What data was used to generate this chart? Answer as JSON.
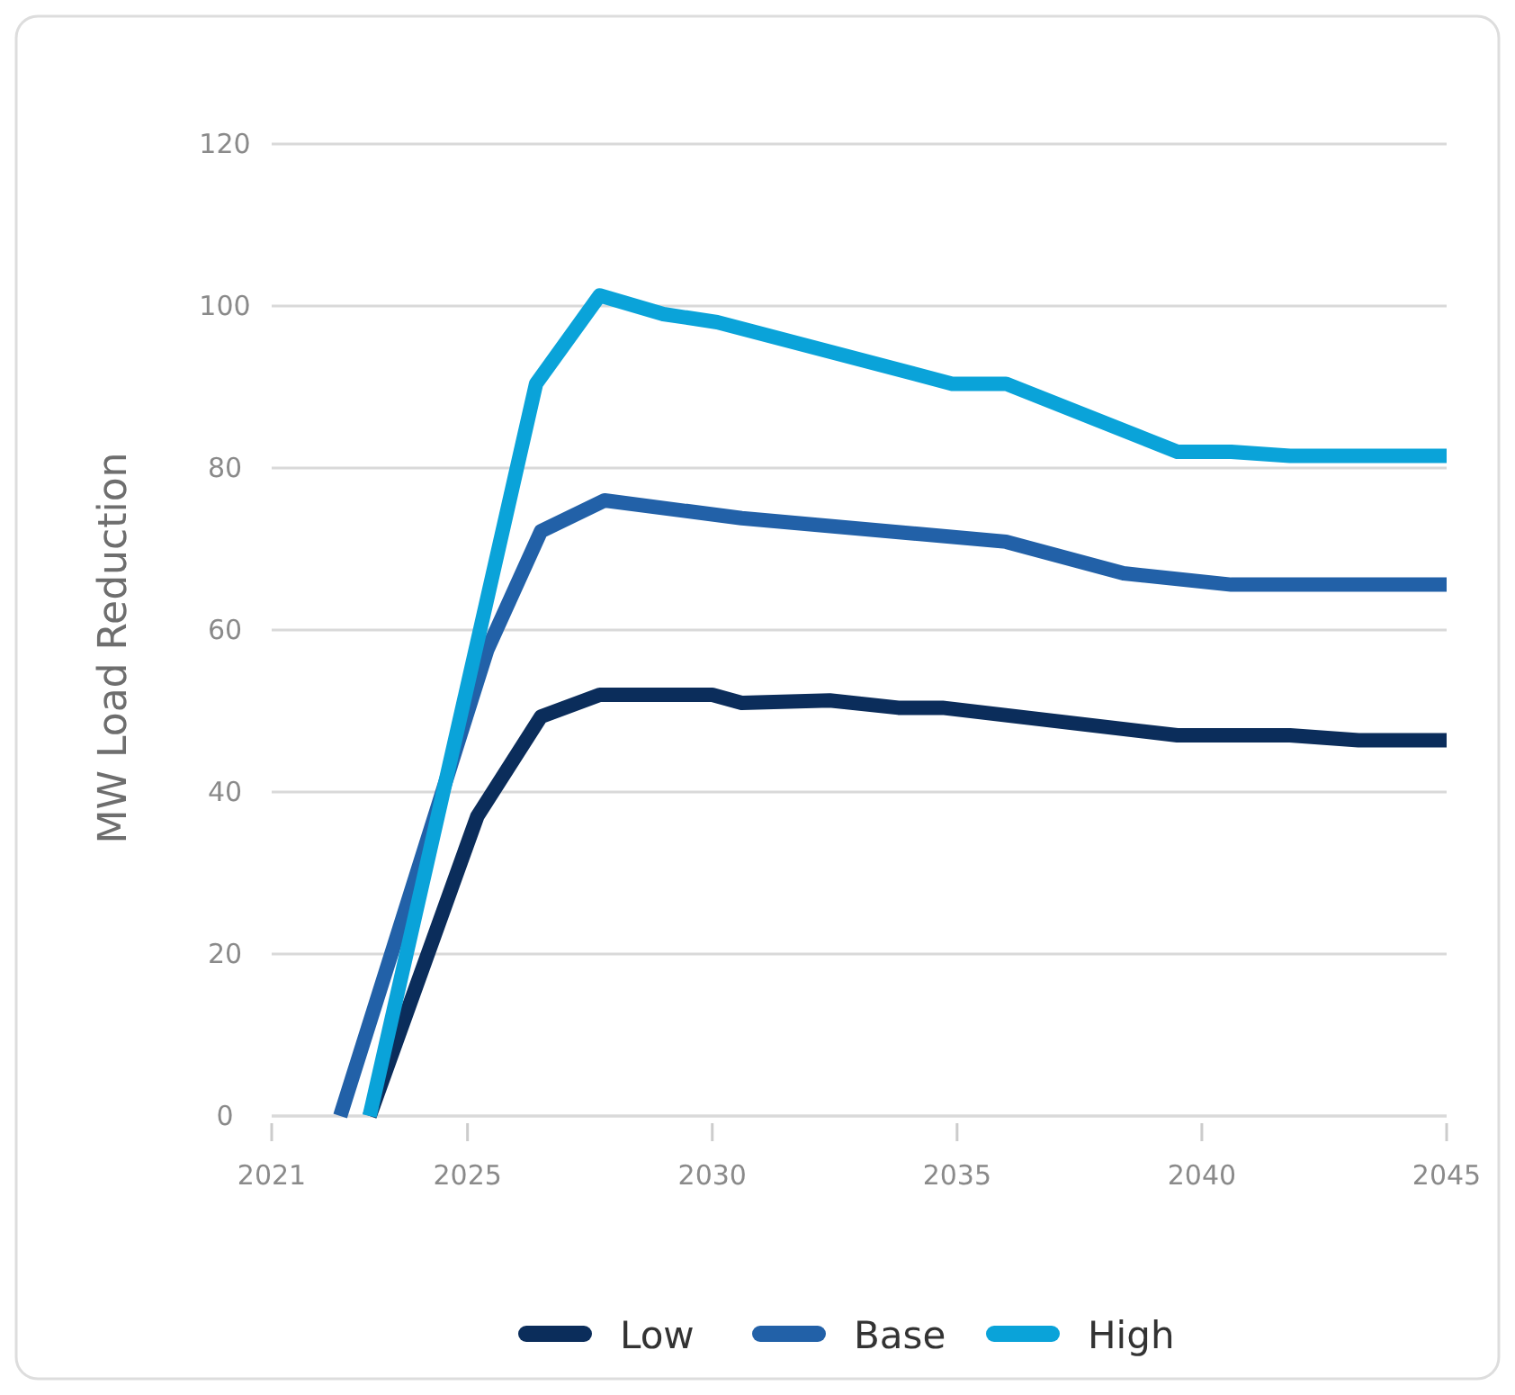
{
  "chart_data": {
    "type": "line",
    "ylabel": "MW Load Reduction",
    "xlim": [
      2021,
      2045
    ],
    "xticks": [
      2021,
      2025,
      2030,
      2035,
      2040,
      2045
    ],
    "ylim": [
      0,
      120
    ],
    "yticks": [
      0,
      20,
      40,
      60,
      80,
      100,
      120
    ],
    "grid": "y",
    "legend": "bottom",
    "line_style": "solid",
    "marker": "none",
    "series": [
      {
        "name": "Low",
        "color": "#0b2d5b",
        "x": [
          2023.0,
          2025.2,
          2026.5,
          2027.7,
          2030.0,
          2030.6,
          2032.4,
          2033.8,
          2034.7,
          2039.5,
          2041.8,
          2043.2,
          2045
        ],
        "values": [
          0,
          37,
          49.3,
          52,
          52,
          51,
          51.3,
          50.4,
          50.4,
          47,
          47,
          46.4,
          46.4
        ]
      },
      {
        "name": "Base",
        "color": "#2261a8",
        "x": [
          2022.4,
          2025.4,
          2026.5,
          2027.8,
          2030.6,
          2036.0,
          2038.4,
          2040.6,
          2045
        ],
        "values": [
          0,
          57.5,
          72.2,
          76,
          73.8,
          70.9,
          67,
          65.6,
          65.6
        ]
      },
      {
        "name": "High",
        "color": "#0aa3d9",
        "x": [
          2023.0,
          2026.4,
          2027.7,
          2029.0,
          2030.1,
          2034.9,
          2036.0,
          2039.5,
          2040.6,
          2041.8,
          2045
        ],
        "values": [
          0,
          90.4,
          101.3,
          99,
          98,
          90.4,
          90.4,
          82,
          82,
          81.5,
          81.5
        ]
      }
    ]
  }
}
